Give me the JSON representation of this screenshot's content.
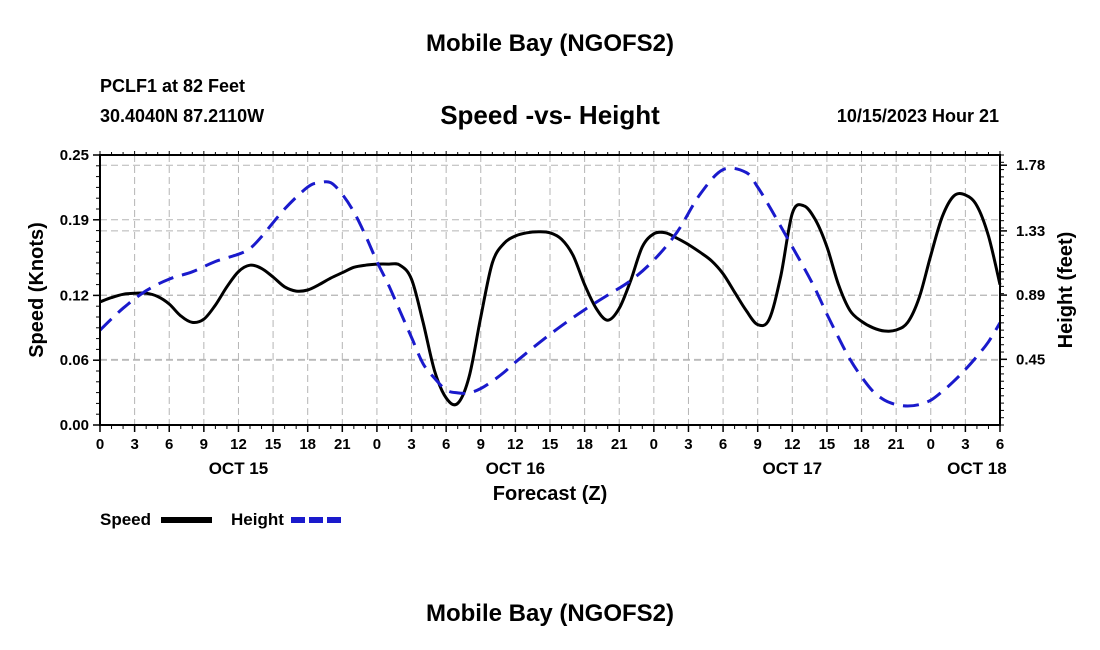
{
  "header": {
    "title": "Mobile Bay (NGOFS2)",
    "station": "PCLF1 at 82 Feet",
    "coords": "30.4040N  87.2110W",
    "subtitle": "Speed -vs- Height",
    "timestamp": "10/15/2023 Hour 21"
  },
  "footer": {
    "title": "Mobile Bay (NGOFS2)"
  },
  "chart_data": {
    "type": "line",
    "title": "Speed -vs- Height",
    "xlabel": "Forecast (Z)",
    "ylabel": "Speed (Knots)",
    "y2label": "Height (feet)",
    "xlim": [
      0,
      78
    ],
    "ylim": [
      0,
      0.25
    ],
    "y2lim": [
      0,
      1.85
    ],
    "x_ticks": [
      0,
      3,
      6,
      9,
      12,
      15,
      18,
      21,
      24,
      27,
      30,
      33,
      36,
      39,
      42,
      45,
      48,
      51,
      54,
      57,
      60,
      63,
      66,
      69,
      72,
      75,
      78
    ],
    "x_tick_labels": [
      "0",
      "3",
      "6",
      "9",
      "12",
      "15",
      "18",
      "21",
      "0",
      "3",
      "6",
      "9",
      "12",
      "15",
      "18",
      "21",
      "0",
      "3",
      "6",
      "9",
      "12",
      "15",
      "18",
      "21",
      "0",
      "3",
      "6"
    ],
    "date_labels": [
      {
        "x": 12,
        "label": "OCT 15"
      },
      {
        "x": 36,
        "label": "OCT 16"
      },
      {
        "x": 60,
        "label": "OCT 17"
      },
      {
        "x": 76,
        "label": "OCT 18"
      }
    ],
    "y_ticks": [
      0.0,
      0.06,
      0.12,
      0.19,
      0.25
    ],
    "y_tick_labels": [
      "0.00",
      "0.06",
      "0.12",
      "0.19",
      "0.25"
    ],
    "y2_ticks": [
      0.45,
      0.89,
      1.33,
      1.78
    ],
    "y2_tick_labels": [
      "0.45",
      "0.89",
      "1.33",
      "1.78"
    ],
    "grid": true,
    "legend": [
      {
        "name": "Speed",
        "color": "#000000",
        "dash": "solid"
      },
      {
        "name": "Height",
        "color": "#1a1acc",
        "dash": "dashed"
      }
    ],
    "series": [
      {
        "name": "Speed",
        "axis": "left",
        "color": "#000000",
        "x": [
          0,
          1,
          2,
          3,
          4,
          5,
          6,
          7,
          8,
          9,
          10,
          11,
          12,
          13,
          14,
          15,
          16,
          17,
          18,
          19,
          20,
          21,
          22,
          23,
          24,
          25,
          26,
          27,
          28,
          29,
          30,
          31,
          32,
          33,
          34,
          35,
          36,
          37,
          38,
          39,
          40,
          41,
          42,
          43,
          44,
          45,
          46,
          47,
          48,
          49,
          50,
          51,
          52,
          53,
          54,
          55,
          56,
          57,
          58,
          59,
          60,
          61,
          62,
          63,
          64,
          65,
          66,
          67,
          68,
          69,
          70,
          71,
          72,
          73,
          74,
          75,
          76,
          77,
          78
        ],
        "values": [
          0.114,
          0.118,
          0.121,
          0.122,
          0.122,
          0.119,
          0.112,
          0.101,
          0.095,
          0.098,
          0.111,
          0.128,
          0.142,
          0.148,
          0.145,
          0.137,
          0.128,
          0.124,
          0.125,
          0.13,
          0.136,
          0.141,
          0.146,
          0.148,
          0.149,
          0.149,
          0.148,
          0.135,
          0.095,
          0.05,
          0.025,
          0.02,
          0.045,
          0.1,
          0.15,
          0.168,
          0.175,
          0.178,
          0.179,
          0.178,
          0.172,
          0.157,
          0.13,
          0.108,
          0.097,
          0.108,
          0.134,
          0.165,
          0.177,
          0.178,
          0.173,
          0.167,
          0.16,
          0.152,
          0.14,
          0.123,
          0.106,
          0.093,
          0.098,
          0.138,
          0.196,
          0.203,
          0.19,
          0.165,
          0.13,
          0.106,
          0.096,
          0.09,
          0.087,
          0.088,
          0.095,
          0.118,
          0.157,
          0.193,
          0.212,
          0.213,
          0.203,
          0.175,
          0.13
        ]
      },
      {
        "name": "Height",
        "axis": "right",
        "color": "#1a1acc",
        "x": [
          0,
          2,
          4,
          6,
          8,
          10,
          12,
          13,
          14,
          16,
          18,
          19,
          20,
          21,
          22,
          23,
          24,
          25,
          26,
          27,
          28,
          29,
          30,
          31,
          32,
          33,
          34,
          35,
          36,
          38,
          40,
          42,
          44,
          46,
          48,
          50,
          52,
          54,
          56,
          57,
          58,
          59,
          60,
          61,
          62,
          63,
          64,
          65,
          66,
          67,
          68,
          69,
          70,
          71,
          72,
          73,
          74,
          75,
          76,
          77,
          78
        ],
        "values": [
          0.65,
          0.8,
          0.92,
          1.0,
          1.05,
          1.12,
          1.17,
          1.21,
          1.29,
          1.48,
          1.63,
          1.66,
          1.66,
          1.58,
          1.46,
          1.3,
          1.12,
          0.96,
          0.78,
          0.6,
          0.42,
          0.32,
          0.24,
          0.22,
          0.22,
          0.25,
          0.3,
          0.36,
          0.43,
          0.56,
          0.68,
          0.79,
          0.89,
          0.99,
          1.13,
          1.32,
          1.58,
          1.75,
          1.73,
          1.63,
          1.5,
          1.36,
          1.22,
          1.08,
          0.93,
          0.76,
          0.6,
          0.45,
          0.33,
          0.23,
          0.17,
          0.14,
          0.13,
          0.14,
          0.17,
          0.23,
          0.3,
          0.38,
          0.47,
          0.57,
          0.7
        ]
      }
    ]
  }
}
